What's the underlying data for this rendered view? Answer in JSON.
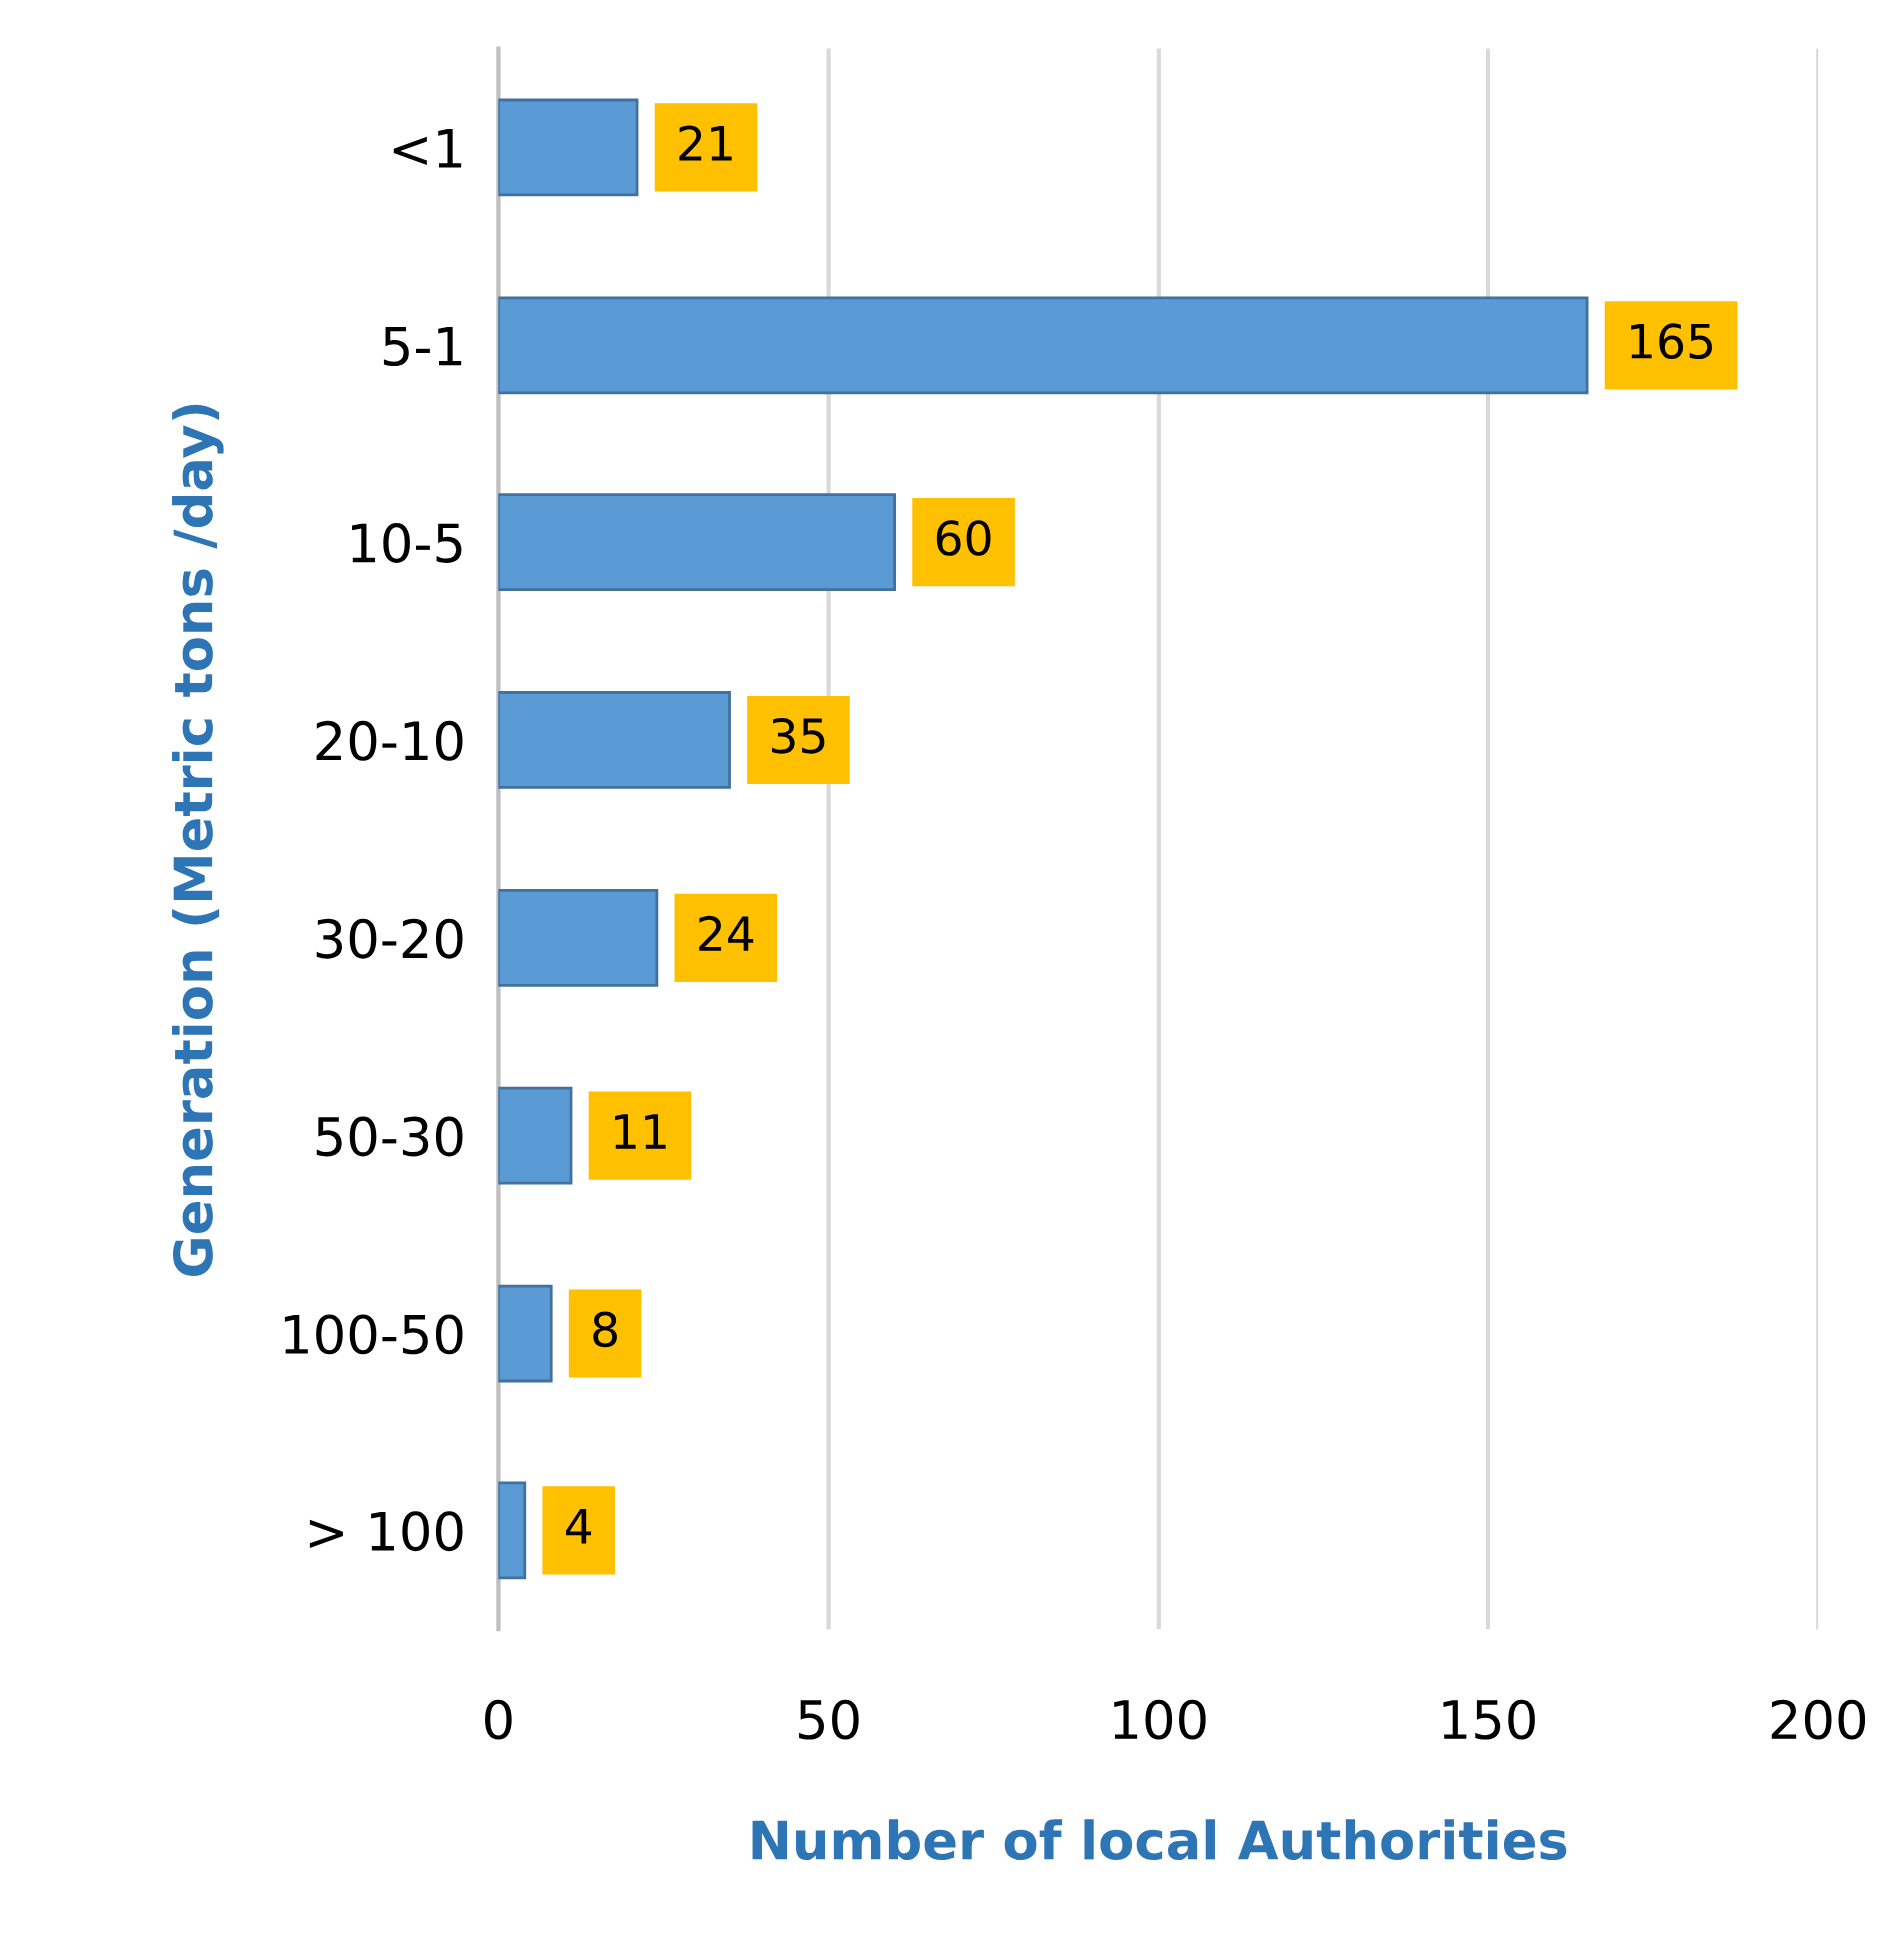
{
  "chart_data": {
    "type": "bar",
    "orientation": "horizontal",
    "xlabel": "Number of local Authorities",
    "ylabel": "Generation (Metric tons /day)",
    "categories": [
      "<1",
      "5-1",
      "10-5",
      "20-10",
      "30-20",
      "50-30",
      "100-50",
      "> 100"
    ],
    "values": [
      21,
      165,
      60,
      35,
      24,
      11,
      8,
      4
    ],
    "color": "#5b9bd5",
    "xlim": [
      0,
      200
    ],
    "xticks": [
      0,
      50,
      100,
      150,
      200
    ],
    "grid": "x",
    "data_labels": true
  }
}
